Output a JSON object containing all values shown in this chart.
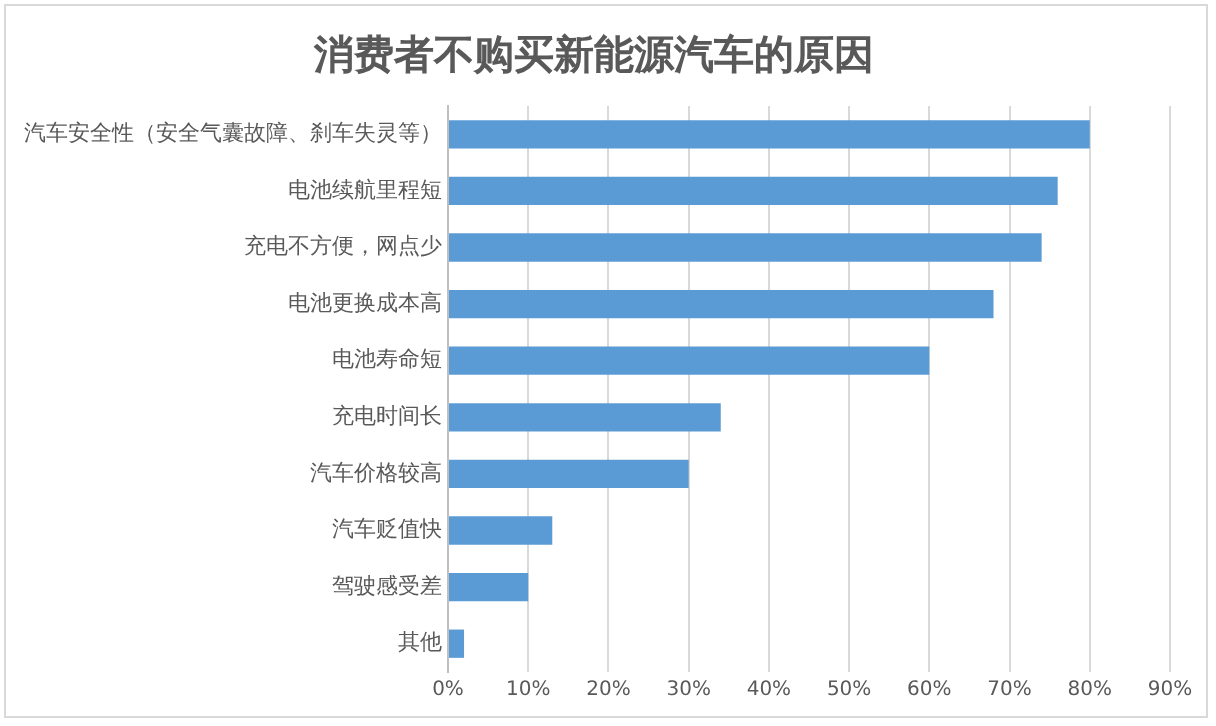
{
  "chart_data": {
    "type": "bar",
    "orientation": "horizontal",
    "title": "消费者不购买新能源汽车的原因",
    "categories": [
      "汽车安全性（安全气囊故障、刹车失灵等）",
      "电池续航里程短",
      "充电不方便，网点少",
      "电池更换成本高",
      "电池寿命短",
      "充电时间长",
      "汽车价格较高",
      "汽车贬值快",
      "驾驶感受差",
      "其他"
    ],
    "values": [
      80,
      76,
      74,
      68,
      60,
      34,
      30,
      13,
      10,
      2
    ],
    "color": "#5b9bd5",
    "xlim": [
      0,
      90
    ],
    "xticks": [
      {
        "value": 0,
        "label": "0%"
      },
      {
        "value": 10,
        "label": "10%"
      },
      {
        "value": 20,
        "label": "20%"
      },
      {
        "value": 30,
        "label": "30%"
      },
      {
        "value": 40,
        "label": "40%"
      },
      {
        "value": 50,
        "label": "50%"
      },
      {
        "value": 60,
        "label": "60%"
      },
      {
        "value": 70,
        "label": "70%"
      },
      {
        "value": 80,
        "label": "80%"
      },
      {
        "value": 90,
        "label": "90%"
      }
    ],
    "grid": "x",
    "legend": false
  }
}
